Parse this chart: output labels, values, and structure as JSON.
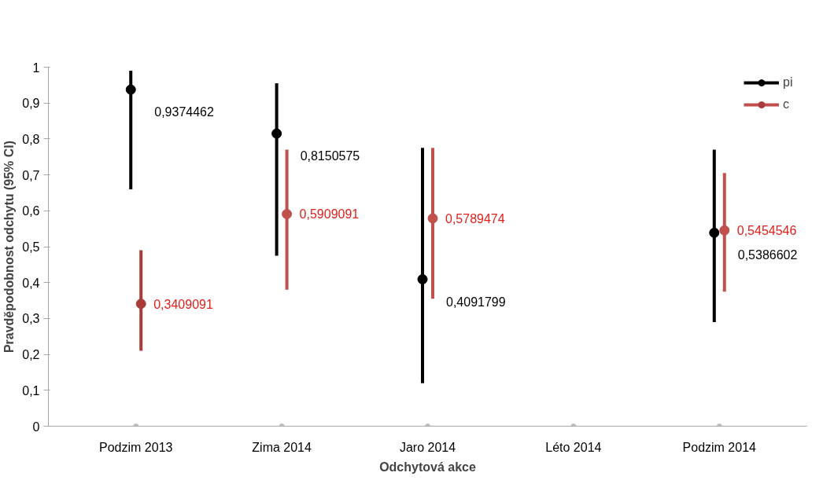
{
  "chart_data": {
    "type": "scatter",
    "xlabel": "Odchytová akce",
    "ylabel": "Pravděpodobnost odchytu (95% CI)",
    "categories": [
      "Podzim 2013",
      "Zima 2014",
      "Jaro 2014",
      "Léto 2014",
      "Podzim 2014"
    ],
    "ylim": [
      0,
      1
    ],
    "yticks": [
      {
        "value": 0,
        "label": "0"
      },
      {
        "value": 0.1,
        "label": "0,1"
      },
      {
        "value": 0.2,
        "label": "0,2"
      },
      {
        "value": 0.3,
        "label": "0,3"
      },
      {
        "value": 0.4,
        "label": "0,4"
      },
      {
        "value": 0.5,
        "label": "0,5"
      },
      {
        "value": 0.6,
        "label": "0,6"
      },
      {
        "value": 0.7,
        "label": "0,7"
      },
      {
        "value": 0.8,
        "label": "0,8"
      },
      {
        "value": 0.9,
        "label": "0,9"
      },
      {
        "value": 1,
        "label": "1"
      }
    ],
    "grid": false,
    "legend": "top right",
    "marker": "circle",
    "series": [
      {
        "name": "pi",
        "color": "#000000",
        "values": [
          0.9374462,
          0.8150575,
          0.4091799,
          null,
          0.5386602
        ],
        "errors": [
          [
            0.66,
            0.99
          ],
          [
            0.475,
            0.955
          ],
          [
            0.12,
            0.775
          ],
          null,
          [
            0.29,
            0.77
          ]
        ],
        "value_labels": [
          "0,9374462",
          "0,8150575",
          "0,4091799",
          null,
          "0,5386602"
        ]
      },
      {
        "name": "c",
        "color": "#c0504d",
        "colors": [
          "#a93c3a",
          "#c0504d",
          "#c0504d",
          "#c0504d",
          "#c0504d"
        ],
        "values": [
          0.3409091,
          0.5909091,
          0.5789474,
          null,
          0.5454546
        ],
        "errors": [
          [
            0.21,
            0.49
          ],
          [
            0.38,
            0.77
          ],
          [
            0.355,
            0.775
          ],
          null,
          [
            0.375,
            0.705
          ]
        ],
        "value_labels": [
          "0,3409091",
          "0,5909091",
          "0,5789474",
          null,
          "0,5454546"
        ]
      },
      {
        "color": "#bfbfbf",
        "values": [
          0,
          0,
          0,
          0,
          0
        ]
      }
    ]
  }
}
